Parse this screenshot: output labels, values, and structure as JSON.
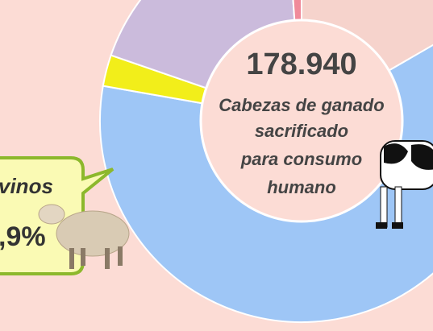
{
  "center": {
    "total": "178.940",
    "caption_lines": [
      "Cabezas de ganado",
      "sacrificado",
      "para consumo",
      "humano"
    ]
  },
  "callout": {
    "label": "vinos",
    "percent": ",9%"
  }
}
